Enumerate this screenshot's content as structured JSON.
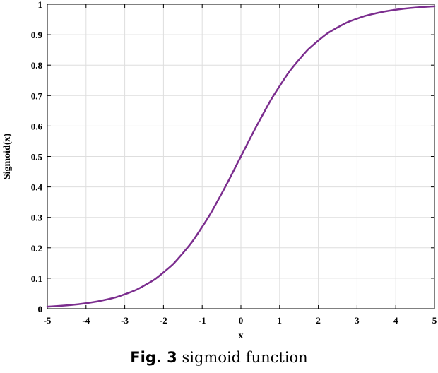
{
  "chart_data": {
    "type": "line",
    "xlabel": "x",
    "ylabel": "Sigmoid(x)",
    "xlim": [
      -5,
      5
    ],
    "ylim": [
      0,
      1
    ],
    "x_ticks": [
      -5,
      -4,
      -3,
      -2,
      -1,
      0,
      1,
      2,
      3,
      4,
      5
    ],
    "y_ticks": [
      0,
      0.1,
      0.2,
      0.3,
      0.4,
      0.5,
      0.6,
      0.7,
      0.8,
      0.9,
      1
    ],
    "x_tick_labels": [
      "-5",
      "-4",
      "-3",
      "-2",
      "-1",
      "0",
      "1",
      "2",
      "3",
      "4",
      "5"
    ],
    "y_tick_labels": [
      "0",
      "0.1",
      "0.2",
      "0.3",
      "0.4",
      "0.5",
      "0.6",
      "0.7",
      "0.8",
      "0.9",
      "1"
    ],
    "grid": true,
    "series": [
      {
        "color": "#7b2d8e",
        "x": [
          -5,
          -4.5,
          -4,
          -3.5,
          -3,
          -2.5,
          -2,
          -1.5,
          -1,
          -0.5,
          0,
          0.5,
          1,
          1.5,
          2,
          2.5,
          3,
          3.5,
          4,
          4.5,
          5
        ],
        "y": [
          0.0067,
          0.011,
          0.018,
          0.0293,
          0.0474,
          0.0759,
          0.1192,
          0.1824,
          0.2689,
          0.3775,
          0.5,
          0.6225,
          0.7311,
          0.8176,
          0.8808,
          0.9241,
          0.9526,
          0.9707,
          0.982,
          0.989,
          0.9933
        ]
      }
    ]
  },
  "caption": {
    "label": "Fig. 3",
    "text": "sigmoid function"
  }
}
